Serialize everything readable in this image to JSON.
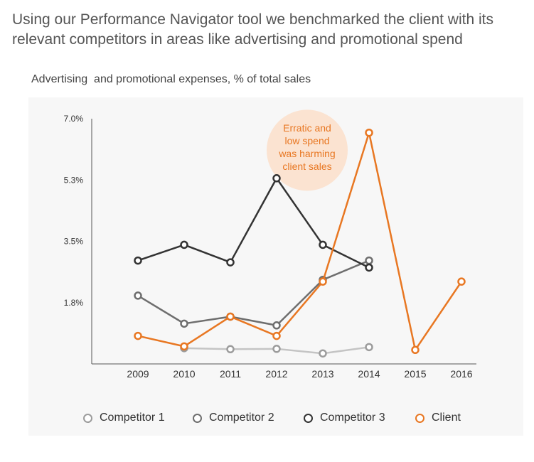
{
  "headline": "Using our Performance Navigator tool we benchmarked the client with its relevant competitors in areas like advertising and promotional spend",
  "chart_data": {
    "type": "line",
    "title": "Advertising  and promotional expenses, % of total sales",
    "x": [
      "2009",
      "2010",
      "2011",
      "2012",
      "2013",
      "2014",
      "2015",
      "2016"
    ],
    "y_ticks": [
      "1.8%",
      "3.5%",
      "5.3%",
      "7.0%"
    ],
    "y_tick_values": [
      1.75,
      3.5,
      5.25,
      7.0
    ],
    "ylim": [
      0,
      7.0
    ],
    "grid": false,
    "legend_position": "bottom",
    "series": [
      {
        "name": "Competitor 1",
        "color": "#c4c4c4",
        "marker_color": "#9c9c9c",
        "values": [
          null,
          0.45,
          0.42,
          0.43,
          0.3,
          0.48,
          null,
          null
        ]
      },
      {
        "name": "Competitor 2",
        "color": "#6e6e6e",
        "marker_color": "#6e6e6e",
        "values": [
          1.95,
          1.15,
          1.35,
          1.1,
          2.4,
          2.95,
          null,
          null
        ]
      },
      {
        "name": "Competitor 3",
        "color": "#333333",
        "marker_color": "#333333",
        "values": [
          2.95,
          3.4,
          2.9,
          5.3,
          3.4,
          2.75,
          null,
          null
        ]
      },
      {
        "name": "Client",
        "color": "#e87722",
        "marker_color": "#e87722",
        "values": [
          0.8,
          0.5,
          1.35,
          0.8,
          2.35,
          6.6,
          0.4,
          2.35
        ]
      }
    ],
    "annotation": {
      "text": "Erratic and low spend was harming client sales",
      "x": "2014",
      "y": 6.1,
      "color": "#e87722",
      "background": "#fbe3d1"
    }
  }
}
